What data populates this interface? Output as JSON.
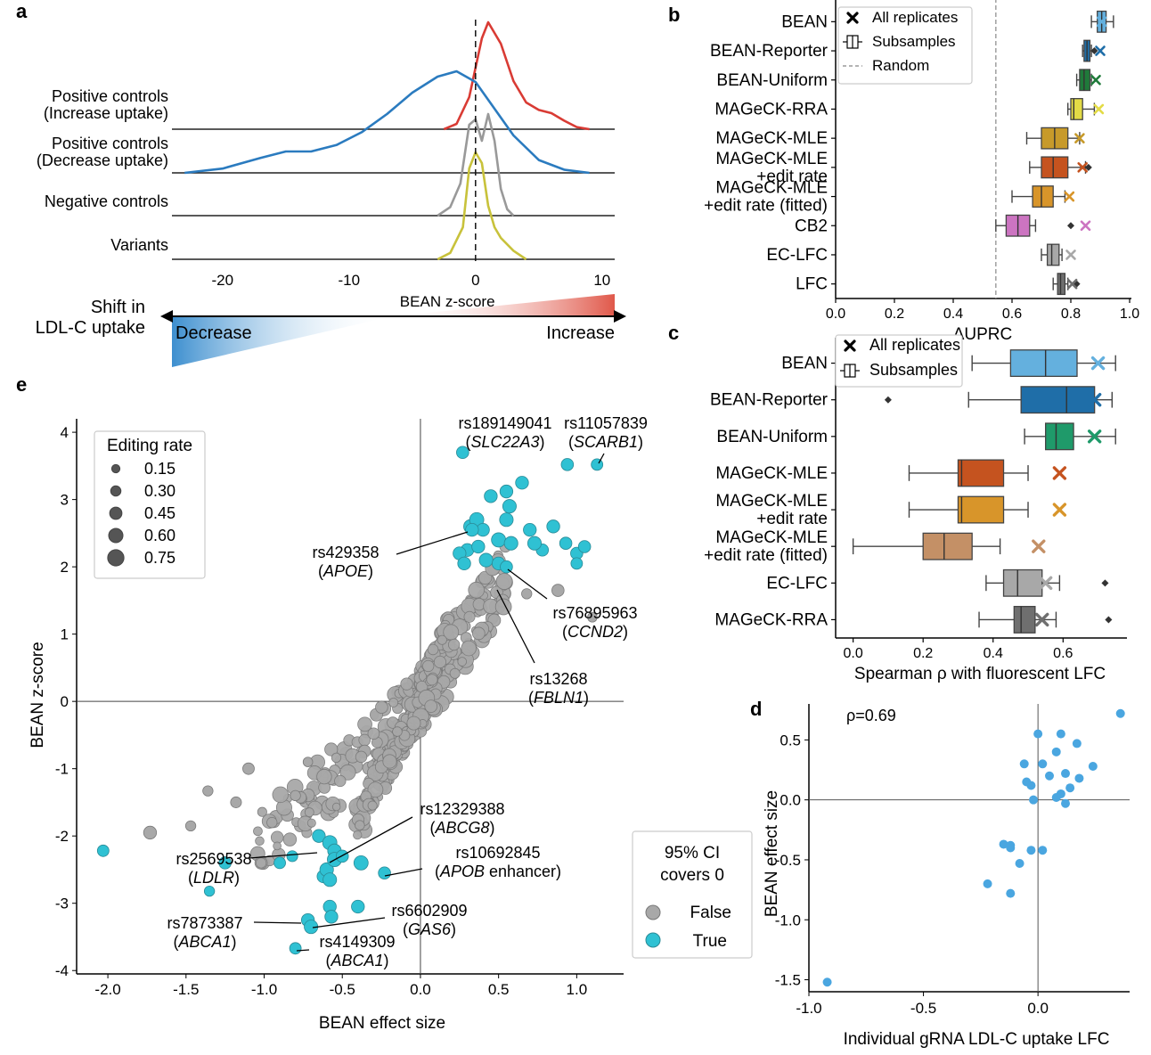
{
  "colors": {
    "red": "#d93b34",
    "blue": "#2b7bbf",
    "gray": "#999999",
    "yellow": "#c8c23b",
    "cyan": "#2fc1d3",
    "point_gray": "#a8a8a8",
    "d_blue": "#4aa6e0"
  },
  "chart_data": [
    {
      "id": "a",
      "panel": "a",
      "type": "area",
      "xlabel": "BEAN z-score",
      "xlim": [
        -24,
        11
      ],
      "xticks": [
        "-20",
        "-10",
        "0",
        "10"
      ],
      "xtick_values": [
        -20,
        -10,
        0,
        10
      ],
      "series": [
        {
          "name": "Positive controls\n(Increase uptake)",
          "color": "#d93b34",
          "x": [
            -2.5,
            -1.5,
            -0.5,
            0.5,
            1,
            2,
            3,
            4,
            5,
            6,
            7,
            8,
            9
          ],
          "y": [
            0,
            0.05,
            0.3,
            0.85,
            1.0,
            0.8,
            0.45,
            0.25,
            0.18,
            0.15,
            0.08,
            0.02,
            0
          ]
        },
        {
          "name": "Positive controls\n(Decrease uptake)",
          "color": "#2b7bbf",
          "x": [
            -23,
            -20,
            -17,
            -15,
            -13,
            -11,
            -9,
            -7,
            -5,
            -3,
            -1.5,
            0,
            1.5,
            3,
            5,
            7,
            9
          ],
          "y": [
            0,
            0.04,
            0.14,
            0.2,
            0.2,
            0.26,
            0.38,
            0.55,
            0.75,
            0.9,
            0.95,
            0.85,
            0.6,
            0.35,
            0.12,
            0.03,
            0
          ]
        },
        {
          "name": "Negative controls",
          "color": "#999999",
          "x": [
            -3,
            -2,
            -1.2,
            -0.5,
            0,
            0.5,
            1,
            1.5,
            2,
            2.5,
            3
          ],
          "y": [
            0,
            0.08,
            0.3,
            0.85,
            0.9,
            0.7,
            0.95,
            0.7,
            0.25,
            0.06,
            0
          ]
        },
        {
          "name": "Variants",
          "color": "#c8c23b",
          "x": [
            -3,
            -2,
            -1,
            -0.5,
            0,
            0.5,
            1,
            1.5,
            2,
            3,
            4
          ],
          "y": [
            0,
            0.06,
            0.3,
            0.85,
            1.0,
            0.9,
            0.5,
            0.3,
            0.2,
            0.08,
            0
          ]
        }
      ],
      "arrow": {
        "label": "Shift in\nLDL-C uptake",
        "left": "Decrease",
        "right": "Increase"
      }
    },
    {
      "id": "b",
      "panel": "b",
      "type": "box",
      "xlabel": "AUPRC",
      "xlim": [
        0.0,
        1.0
      ],
      "xticks": [
        "0.0",
        "0.2",
        "0.4",
        "0.6",
        "0.8",
        "1.0"
      ],
      "xtick_values": [
        0,
        0.2,
        0.4,
        0.6,
        0.8,
        1.0
      ],
      "random_line": 0.545,
      "legend": [
        "All replicates",
        "Subsamples",
        "Random"
      ],
      "legend_position": "top-left",
      "categories": [
        "BEAN",
        "BEAN-Reporter",
        "BEAN-Uniform",
        "MAGeCK-RRA",
        "MAGeCK-MLE",
        "MAGeCK-MLE\n+edit rate",
        "MAGeCK-MLE\n+edit rate (fitted)",
        "CB2",
        "EC-LFC",
        "LFC"
      ],
      "colors": [
        "#64b0de",
        "#1f6ea8",
        "#1f7a3a",
        "#e3db46",
        "#c79a2a",
        "#c5531f",
        "#d8952a",
        "#cc74c1",
        "#a8a8a8",
        "#6f6f6f"
      ],
      "cross_colors": [
        "#64b0de",
        "#1f6ea8",
        "#1f7a3a",
        "#e3db46",
        "#c79a2a",
        "#c5531f",
        "#d8952a",
        "#cc74c1",
        "#a8a8a8",
        "#6f6f6f"
      ],
      "boxes": [
        {
          "wmin": 0.87,
          "q1": 0.89,
          "med": 0.905,
          "q3": 0.92,
          "wmax": 0.945,
          "cross": 0.905,
          "out": []
        },
        {
          "wmin": 0.84,
          "q1": 0.845,
          "med": 0.855,
          "q3": 0.865,
          "wmax": 0.87,
          "cross": 0.9,
          "out": [
            0.88
          ]
        },
        {
          "wmin": 0.82,
          "q1": 0.83,
          "med": 0.845,
          "q3": 0.865,
          "wmax": 0.87,
          "cross": 0.885,
          "out": []
        },
        {
          "wmin": 0.79,
          "q1": 0.8,
          "med": 0.81,
          "q3": 0.84,
          "wmax": 0.88,
          "cross": 0.895,
          "out": []
        },
        {
          "wmin": 0.65,
          "q1": 0.7,
          "med": 0.745,
          "q3": 0.79,
          "wmax": 0.83,
          "cross": 0.83,
          "out": []
        },
        {
          "wmin": 0.66,
          "q1": 0.7,
          "med": 0.74,
          "q3": 0.79,
          "wmax": 0.85,
          "cross": 0.84,
          "out": [
            0.86
          ]
        },
        {
          "wmin": 0.6,
          "q1": 0.67,
          "med": 0.7,
          "q3": 0.74,
          "wmax": 0.78,
          "cross": 0.795,
          "out": []
        },
        {
          "wmin": 0.545,
          "q1": 0.58,
          "med": 0.62,
          "q3": 0.66,
          "wmax": 0.68,
          "cross": 0.85,
          "out": [
            0.8
          ]
        },
        {
          "wmin": 0.7,
          "q1": 0.72,
          "med": 0.735,
          "q3": 0.76,
          "wmax": 0.77,
          "cross": 0.8,
          "out": []
        },
        {
          "wmin": 0.74,
          "q1": 0.755,
          "med": 0.765,
          "q3": 0.78,
          "wmax": 0.79,
          "cross": 0.805,
          "out": [
            0.82
          ]
        }
      ]
    },
    {
      "id": "c",
      "panel": "c",
      "type": "box",
      "xlabel": "Spearman ρ with fluorescent LFC",
      "xlim": [
        -0.05,
        0.78
      ],
      "xticks": [
        "0.0",
        "0.2",
        "0.4",
        "0.6"
      ],
      "xtick_values": [
        0,
        0.2,
        0.4,
        0.6
      ],
      "legend": [
        "All replicates",
        "Subsamples"
      ],
      "legend_position": "top-left",
      "categories": [
        "BEAN",
        "BEAN-Reporter",
        "BEAN-Uniform",
        "MAGeCK-MLE",
        "MAGeCK-MLE\n+edit rate",
        "MAGeCK-MLE\n+edit rate (fitted)",
        "EC-LFC",
        "MAGeCK-RRA"
      ],
      "colors": [
        "#64b0de",
        "#1f6ea8",
        "#1f9a6a",
        "#c5531f",
        "#d8952a",
        "#c49066",
        "#a8a8a8",
        "#6f6f6f"
      ],
      "cross_colors": [
        "#64b0de",
        "#1f6ea8",
        "#1f9a6a",
        "#c5531f",
        "#d8952a",
        "#c49066",
        "#a8a8a8",
        "#6f6f6f"
      ],
      "boxes": [
        {
          "wmin": 0.34,
          "q1": 0.45,
          "med": 0.55,
          "q3": 0.64,
          "wmax": 0.75,
          "cross": 0.7,
          "out": []
        },
        {
          "wmin": 0.33,
          "q1": 0.48,
          "med": 0.61,
          "q3": 0.69,
          "wmax": 0.74,
          "cross": 0.69,
          "out": [
            0.1
          ]
        },
        {
          "wmin": 0.49,
          "q1": 0.55,
          "med": 0.58,
          "q3": 0.63,
          "wmax": 0.75,
          "cross": 0.69,
          "out": []
        },
        {
          "wmin": 0.16,
          "q1": 0.3,
          "med": 0.31,
          "q3": 0.43,
          "wmax": 0.5,
          "cross": 0.59,
          "out": []
        },
        {
          "wmin": 0.16,
          "q1": 0.3,
          "med": 0.31,
          "q3": 0.43,
          "wmax": 0.5,
          "cross": 0.59,
          "out": []
        },
        {
          "wmin": 0.0,
          "q1": 0.2,
          "med": 0.26,
          "q3": 0.34,
          "wmax": 0.42,
          "cross": 0.53,
          "out": []
        },
        {
          "wmin": 0.38,
          "q1": 0.43,
          "med": 0.47,
          "q3": 0.54,
          "wmax": 0.59,
          "cross": 0.55,
          "out": [
            0.72
          ]
        },
        {
          "wmin": 0.36,
          "q1": 0.46,
          "med": 0.48,
          "q3": 0.52,
          "wmax": 0.58,
          "cross": 0.54,
          "out": [
            0.73
          ]
        }
      ]
    },
    {
      "id": "d",
      "panel": "d",
      "type": "scatter",
      "xlabel": "Individual gRNA LDL-C uptake LFC",
      "ylabel": "BEAN effect size",
      "xlim": [
        -1.0,
        0.4
      ],
      "ylim": [
        -1.6,
        0.8
      ],
      "xticks": [
        "-1.0",
        "-0.5",
        "0.0"
      ],
      "xtick_values": [
        -1.0,
        -0.5,
        0.0
      ],
      "yticks": [
        "-1.5",
        "-1.0",
        "-0.5",
        "0.0",
        "0.5"
      ],
      "ytick_values": [
        -1.5,
        -1.0,
        -0.5,
        0.0,
        0.5
      ],
      "annotation": "ρ=0.69",
      "points": [
        [
          -0.92,
          -1.52
        ],
        [
          -0.22,
          -0.7
        ],
        [
          -0.12,
          -0.78
        ],
        [
          -0.15,
          -0.37
        ],
        [
          -0.12,
          -0.4
        ],
        [
          -0.08,
          -0.53
        ],
        [
          -0.03,
          -0.42
        ],
        [
          0.02,
          -0.42
        ],
        [
          -0.12,
          -0.38
        ],
        [
          -0.02,
          0.0
        ],
        [
          -0.05,
          0.15
        ],
        [
          -0.06,
          0.3
        ],
        [
          -0.03,
          0.12
        ],
        [
          0.02,
          0.3
        ],
        [
          0.0,
          0.55
        ],
        [
          0.1,
          0.55
        ],
        [
          0.08,
          0.4
        ],
        [
          0.12,
          0.22
        ],
        [
          0.17,
          0.47
        ],
        [
          0.1,
          0.05
        ],
        [
          0.12,
          -0.03
        ],
        [
          0.18,
          0.18
        ],
        [
          0.14,
          0.1
        ],
        [
          0.24,
          0.28
        ],
        [
          0.36,
          0.72
        ],
        [
          0.05,
          0.2
        ],
        [
          0.08,
          0.02
        ]
      ]
    },
    {
      "id": "e",
      "panel": "e",
      "type": "scatter",
      "xlabel": "BEAN effect size",
      "ylabel": "BEAN z-score",
      "xlim": [
        -2.2,
        1.3
      ],
      "ylim": [
        -4.05,
        4.2
      ],
      "xticks": [
        "-2.0",
        "-1.5",
        "-1.0",
        "-0.5",
        "0.0",
        "0.5",
        "1.0"
      ],
      "xtick_values": [
        -2.0,
        -1.5,
        -1.0,
        -0.5,
        0.0,
        0.5,
        1.0
      ],
      "yticks": [
        "-4",
        "-3",
        "-2",
        "-1",
        "0",
        "1",
        "2",
        "3",
        "4"
      ],
      "ytick_values": [
        -4,
        -3,
        -2,
        -1,
        0,
        1,
        2,
        3,
        4
      ],
      "size_legend_title": "Editing rate",
      "size_legend": [
        "0.15",
        "0.30",
        "0.45",
        "0.60",
        "0.75"
      ],
      "size_legend_values": [
        0.15,
        0.3,
        0.45,
        0.6,
        0.75
      ],
      "color_legend_title": "95% CI\ncovers 0",
      "color_legend": [
        "False",
        "True"
      ],
      "significant_points": [
        [
          -2.03,
          -2.22,
          0.4
        ],
        [
          -1.35,
          -2.82,
          0.3
        ],
        [
          -1.25,
          -2.4,
          0.45
        ],
        [
          -0.9,
          -2.4,
          0.4
        ],
        [
          -0.82,
          -2.3,
          0.35
        ],
        [
          -0.8,
          -3.67,
          0.4
        ],
        [
          -0.72,
          -3.25,
          0.5
        ],
        [
          -0.7,
          -3.35,
          0.55
        ],
        [
          -0.65,
          -2.0,
          0.5
        ],
        [
          -0.62,
          -2.6,
          0.5
        ],
        [
          -0.6,
          -2.5,
          0.55
        ],
        [
          -0.58,
          -2.1,
          0.6
        ],
        [
          -0.55,
          -2.22,
          0.55
        ],
        [
          -0.55,
          -2.35,
          0.6
        ],
        [
          -0.58,
          -2.65,
          0.55
        ],
        [
          -0.58,
          -3.05,
          0.5
        ],
        [
          -0.5,
          -2.3,
          0.45
        ],
        [
          -0.4,
          -3.05,
          0.5
        ],
        [
          -0.38,
          -2.4,
          0.6
        ],
        [
          -0.23,
          -2.55,
          0.45
        ],
        [
          -0.57,
          -3.2,
          0.5
        ],
        [
          0.27,
          3.7,
          0.45
        ],
        [
          0.94,
          3.52,
          0.45
        ],
        [
          1.13,
          3.52,
          0.4
        ],
        [
          0.32,
          2.6,
          0.55
        ],
        [
          0.36,
          2.7,
          0.6
        ],
        [
          0.4,
          2.55,
          0.5
        ],
        [
          0.45,
          3.05,
          0.5
        ],
        [
          0.55,
          3.12,
          0.5
        ],
        [
          0.65,
          3.25,
          0.5
        ],
        [
          0.55,
          2.7,
          0.55
        ],
        [
          0.5,
          2.4,
          0.6
        ],
        [
          0.58,
          2.35,
          0.55
        ],
        [
          0.7,
          2.55,
          0.5
        ],
        [
          0.78,
          2.25,
          0.45
        ],
        [
          0.93,
          2.35,
          0.45
        ],
        [
          1.0,
          2.2,
          0.45
        ],
        [
          1.05,
          2.3,
          0.45
        ],
        [
          0.3,
          2.25,
          0.5
        ],
        [
          0.25,
          2.2,
          0.5
        ],
        [
          0.42,
          2.1,
          0.55
        ],
        [
          0.5,
          2.05,
          0.5
        ],
        [
          0.55,
          2.0,
          0.45
        ],
        [
          0.28,
          2.05,
          0.5
        ],
        [
          0.73,
          2.35,
          0.55
        ],
        [
          0.85,
          2.6,
          0.5
        ],
        [
          1.0,
          2.05,
          0.4
        ],
        [
          0.33,
          2.55,
          0.5
        ],
        [
          0.57,
          2.9,
          0.55
        ],
        [
          0.37,
          2.3,
          0.5
        ]
      ],
      "labels": [
        {
          "id": "rs189149041",
          "gene": "SLC22A3"
        },
        {
          "id": "rs11057839",
          "gene": "SCARB1"
        },
        {
          "id": "rs429358",
          "gene": "APOE"
        },
        {
          "id": "rs76895963",
          "gene": "CCND2"
        },
        {
          "id": "rs13268",
          "gene": "FBLN1"
        },
        {
          "id": "rs12329388",
          "gene": "ABCG8"
        },
        {
          "id": "rs10692845",
          "gene": "APOB",
          "suffix": " enhancer"
        },
        {
          "id": "rs2569538",
          "gene": "LDLR"
        },
        {
          "id": "rs6602909",
          "gene": "GAS6"
        },
        {
          "id": "rs7873387",
          "gene": "ABCA1"
        },
        {
          "id": "rs4149309",
          "gene": "ABCA1"
        }
      ]
    }
  ]
}
